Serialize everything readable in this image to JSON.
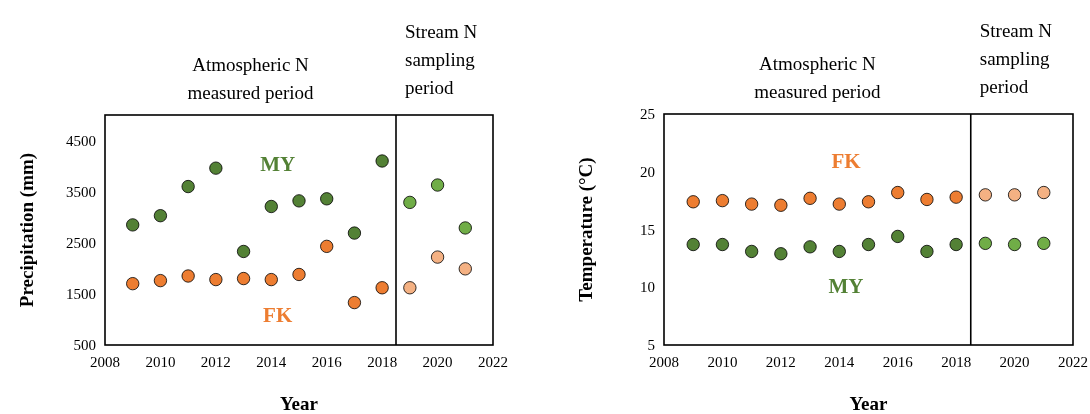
{
  "chart_data": [
    {
      "type": "scatter",
      "xlabel": "Year",
      "ylabel": "Precipitation (mm)",
      "xlim": [
        2008,
        2022
      ],
      "xticks": [
        2008,
        2010,
        2012,
        2014,
        2016,
        2018,
        2020,
        2022
      ],
      "ylim": [
        500,
        5000
      ],
      "yticks": [
        500,
        1500,
        2500,
        3500,
        4500
      ],
      "grid": false,
      "marker": "circle",
      "x": [
        2009,
        2010,
        2011,
        2012,
        2013,
        2014,
        2015,
        2016,
        2017,
        2018,
        2019,
        2020,
        2021
      ],
      "series": [
        {
          "name": "MY",
          "color": "#538135",
          "colors": [
            "#538135",
            "#538135",
            "#538135",
            "#538135",
            "#538135",
            "#538135",
            "#538135",
            "#538135",
            "#538135",
            "#538135",
            "#70ad47",
            "#70ad47",
            "#70ad47"
          ],
          "values": [
            2850,
            3030,
            3600,
            3960,
            2330,
            3210,
            3320,
            3360,
            2690,
            4100,
            3290,
            3630,
            2790
          ]
        },
        {
          "name": "FK",
          "color": "#ed7d31",
          "colors": [
            "#ed7d31",
            "#ed7d31",
            "#ed7d31",
            "#ed7d31",
            "#ed7d31",
            "#ed7d31",
            "#ed7d31",
            "#ed7d31",
            "#ed7d31",
            "#ed7d31",
            "#f4b183",
            "#f4b183",
            "#f4b183"
          ],
          "values": [
            1700,
            1760,
            1850,
            1780,
            1800,
            1780,
            1880,
            2430,
            1330,
            1620,
            1620,
            2220,
            1990
          ]
        }
      ],
      "ref_lines": [
        {
          "axis": "x",
          "value": 2018.5,
          "color": "#000000"
        }
      ],
      "annotations": [
        "Atmospheric N\nmeasured period",
        "Stream N\nsampling\nperiod"
      ]
    },
    {
      "type": "scatter",
      "xlabel": "Year",
      "ylabel": "Temperature (°C)",
      "xlim": [
        2008,
        2022
      ],
      "xticks": [
        2008,
        2010,
        2012,
        2014,
        2016,
        2018,
        2020,
        2022
      ],
      "ylim": [
        5,
        25
      ],
      "yticks": [
        5,
        10,
        15,
        20,
        25
      ],
      "grid": false,
      "marker": "circle",
      "x": [
        2009,
        2010,
        2011,
        2012,
        2013,
        2014,
        2015,
        2016,
        2017,
        2018,
        2019,
        2020,
        2021
      ],
      "series": [
        {
          "name": "FK",
          "color": "#ed7d31",
          "colors": [
            "#ed7d31",
            "#ed7d31",
            "#ed7d31",
            "#ed7d31",
            "#ed7d31",
            "#ed7d31",
            "#ed7d31",
            "#ed7d31",
            "#ed7d31",
            "#ed7d31",
            "#f4b183",
            "#f4b183",
            "#f4b183"
          ],
          "values": [
            17.4,
            17.5,
            17.2,
            17.1,
            17.7,
            17.2,
            17.4,
            18.2,
            17.6,
            17.8,
            18.0,
            18.0,
            18.2
          ]
        },
        {
          "name": "MY",
          "color": "#538135",
          "colors": [
            "#538135",
            "#538135",
            "#538135",
            "#538135",
            "#538135",
            "#538135",
            "#538135",
            "#538135",
            "#538135",
            "#538135",
            "#70ad47",
            "#70ad47",
            "#70ad47"
          ],
          "values": [
            13.7,
            13.7,
            13.1,
            12.9,
            13.5,
            13.1,
            13.7,
            14.4,
            13.1,
            13.7,
            13.8,
            13.7,
            13.8
          ]
        }
      ],
      "ref_lines": [
        {
          "axis": "x",
          "value": 2018.5,
          "color": "#000000"
        }
      ],
      "annotations": [
        "Atmospheric N\nmeasured period",
        "Stream N\nsampling\nperiod"
      ]
    }
  ]
}
